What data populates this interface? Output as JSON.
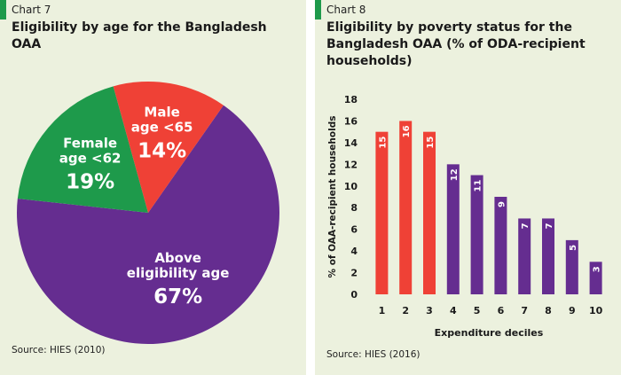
{
  "chart_data": [
    {
      "type": "pie",
      "chart_label": "Chart 7",
      "title": "Eligibility by age for the Bangladesh OAA",
      "slices": [
        {
          "label_lines": [
            "Above",
            "eligibility age"
          ],
          "value": 67,
          "value_label": "67%",
          "color": "#652d90"
        },
        {
          "label_lines": [
            "Female",
            "age <62"
          ],
          "value": 19,
          "value_label": "19%",
          "color": "#1e9a4b"
        },
        {
          "label_lines": [
            "Male",
            "age <65"
          ],
          "value": 14,
          "value_label": "14%",
          "color": "#ef4136"
        }
      ],
      "source": "Source: HIES (2010)"
    },
    {
      "type": "bar",
      "chart_label": "Chart 8",
      "title": "Eligibility by poverty status for the Bangladesh OAA (% of ODA-recipient households)",
      "categories": [
        "1",
        "2",
        "3",
        "4",
        "5",
        "6",
        "7",
        "8",
        "9",
        "10"
      ],
      "values": [
        15,
        16,
        15,
        12,
        11,
        9,
        7,
        7,
        5,
        3
      ],
      "bar_colors": [
        "#ef4136",
        "#ef4136",
        "#ef4136",
        "#652d90",
        "#652d90",
        "#652d90",
        "#652d90",
        "#652d90",
        "#652d90",
        "#652d90"
      ],
      "xlabel": "Expenditure deciles",
      "ylabel": "% of OAA-recipient households",
      "ylim": [
        0,
        18
      ],
      "yticks": [
        0,
        2,
        4,
        6,
        8,
        10,
        12,
        14,
        16,
        18
      ],
      "grid": false,
      "source": "Source: HIES (2016)"
    }
  ]
}
